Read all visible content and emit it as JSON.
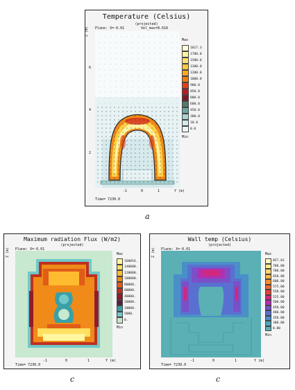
{
  "panels": [
    {
      "title": "Temperature (Celsius)",
      "subtitle": "(projected)",
      "plane": "Plane: X=-0.01",
      "vel": "Vel_max=8.616",
      "time": "Time= 7230.0",
      "y_axis_label": "Z (m)",
      "x_axis_label": "Y (m)",
      "x_ticks": [
        "-1",
        "0",
        "1"
      ],
      "y_ticks": [
        "6",
        "4",
        "2"
      ],
      "legend_max": "Max",
      "legend_min": "Min",
      "legend": [
        {
          "label": "1817.3",
          "color": "#fffbd6"
        },
        {
          "label": "1700.0",
          "color": "#fff3a0"
        },
        {
          "label": "1500.0",
          "color": "#ffe070"
        },
        {
          "label": "1300.0",
          "color": "#ffc840"
        },
        {
          "label": "1200.0",
          "color": "#ffa720"
        },
        {
          "label": "1000.0",
          "color": "#f07d10"
        },
        {
          "label": "900.0",
          "color": "#e0401a"
        },
        {
          "label": "850.0",
          "color": "#b81c22"
        },
        {
          "label": "800.0",
          "color": "#7a1a22"
        },
        {
          "label": "600.0",
          "color": "#58786c"
        },
        {
          "label": "450.0",
          "color": "#6fa6a2"
        },
        {
          "label": "300.0",
          "color": "#a9d2d2"
        },
        {
          "label": "10.0",
          "color": "#d4eaec"
        },
        {
          "label": "0.0",
          "color": "#edf6f7"
        }
      ],
      "caption": "a"
    },
    {
      "title": "Maximum radiation Flux (W/m2)",
      "subtitle": "(projected)",
      "plane": "Plane: X=-0.01",
      "time": "Time= 7230.0",
      "y_axis_label": "Z (m)",
      "x_axis_label": "Y (m)",
      "x_ticks": [
        "-1",
        "0",
        "1"
      ],
      "legend_max": "Max",
      "legend_min": "Min",
      "legend": [
        {
          "label": "168054.",
          "color": "#fff7a0"
        },
        {
          "label": "140000.",
          "color": "#ffe060"
        },
        {
          "label": "120000.",
          "color": "#ffbb30"
        },
        {
          "label": "100000.",
          "color": "#f08a18"
        },
        {
          "label": "80000.",
          "color": "#e05c18"
        },
        {
          "label": "60000.",
          "color": "#c03020"
        },
        {
          "label": "40000.",
          "color": "#901c2c"
        },
        {
          "label": "20000.",
          "color": "#5a2040"
        },
        {
          "label": "10000.",
          "color": "#3aa0a8"
        },
        {
          "label": "5000.",
          "color": "#70c8c8"
        },
        {
          "label": "0.",
          "color": "#c8e8d0"
        }
      ],
      "caption": "c"
    },
    {
      "title": "Wall temp (Celsius)",
      "subtitle": "(projected)",
      "plane": "Plane: X=-0.01",
      "time": "Time= 7230.0",
      "y_axis_label": "Z (m)",
      "x_axis_label": "Y (m)",
      "x_ticks": [
        "-1",
        "0",
        "1"
      ],
      "legend_max": "Max",
      "legend_min": "Min",
      "legend": [
        {
          "label": "857.01",
          "color": "#fff7c0"
        },
        {
          "label": "780.00",
          "color": "#ffee90"
        },
        {
          "label": "700.00",
          "color": "#ffd870"
        },
        {
          "label": "650.00",
          "color": "#ffb848"
        },
        {
          "label": "600.00",
          "color": "#f89030"
        },
        {
          "label": "575.00",
          "color": "#ee6a30"
        },
        {
          "label": "550.00",
          "color": "#e04438"
        },
        {
          "label": "525.00",
          "color": "#d0287a"
        },
        {
          "label": "500.00",
          "color": "#b030b0"
        },
        {
          "label": "450.00",
          "color": "#7a50c8"
        },
        {
          "label": "400.00",
          "color": "#5a70d0"
        },
        {
          "label": "350.00",
          "color": "#4a90c8"
        },
        {
          "label": "300.00",
          "color": "#4aa8b8"
        },
        {
          "label": "0.00",
          "color": "#5ab0b4"
        }
      ],
      "caption": "c"
    }
  ]
}
